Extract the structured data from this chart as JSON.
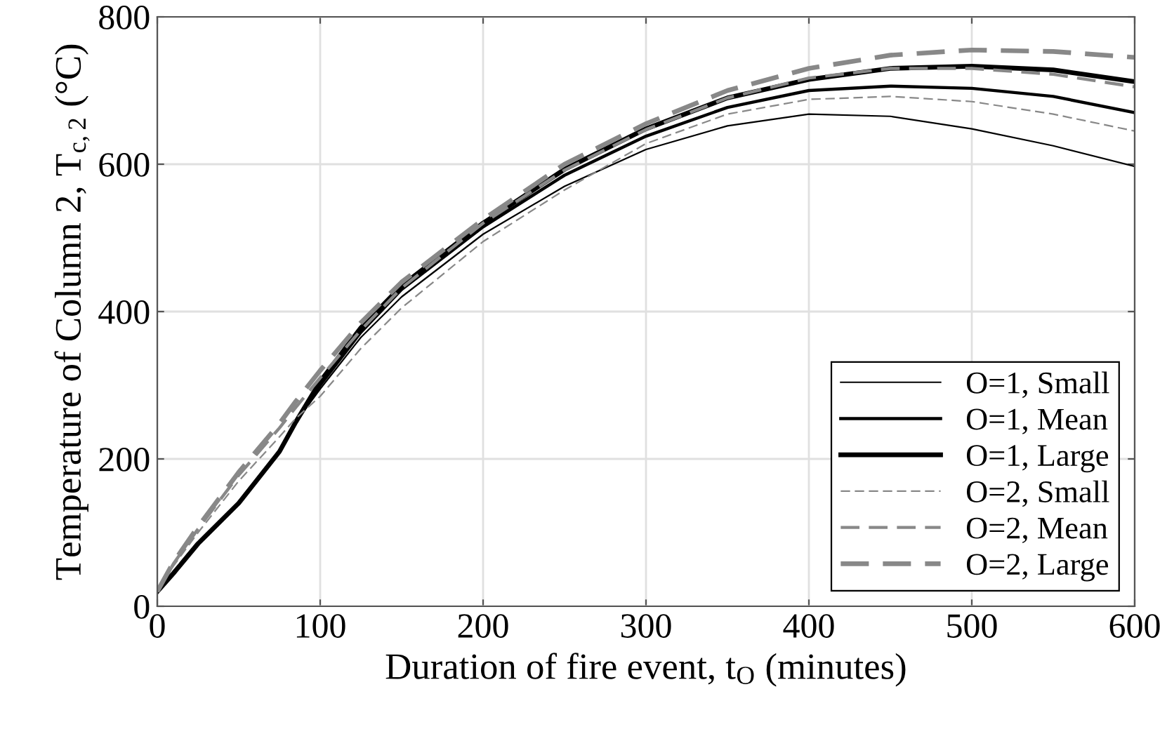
{
  "chart_data": {
    "type": "line",
    "xlabel": "Duration of fire event, t$_{O}$ (minutes)",
    "ylabel": "Temperature of Column 2, T$_{c,2}$ (°C)",
    "x": [
      0,
      10,
      25,
      50,
      75,
      85,
      100,
      125,
      150,
      200,
      250,
      300,
      350,
      400,
      450,
      500,
      550,
      600
    ],
    "xlim": [
      0,
      600
    ],
    "ylim": [
      0,
      800
    ],
    "xticks": [
      0,
      100,
      200,
      300,
      400,
      500,
      600
    ],
    "yticks": [
      0,
      200,
      400,
      600,
      800
    ],
    "grid": true,
    "legend": "bottom right",
    "series": [
      {
        "name": "O=1, Small",
        "color": "#000000",
        "line_style": "solid",
        "values": [
          20,
          45,
          85,
          140,
          210,
          250,
          295,
          365,
          420,
          505,
          570,
          620,
          652,
          668,
          665,
          648,
          625,
          597
        ]
      },
      {
        "name": "O=1, Mean",
        "color": "#000000",
        "line_style": "solid",
        "values": [
          20,
          45,
          85,
          140,
          210,
          250,
          300,
          372,
          430,
          515,
          585,
          638,
          677,
          700,
          706,
          703,
          692,
          670
        ]
      },
      {
        "name": "O=1, Large",
        "color": "#000000",
        "line_style": "solid",
        "values": [
          20,
          45,
          85,
          140,
          210,
          250,
          305,
          378,
          435,
          520,
          593,
          648,
          690,
          715,
          730,
          733,
          728,
          712
        ]
      },
      {
        "name": "O=2, Small",
        "color": "#888888",
        "line_style": "dashed",
        "values": [
          20,
          55,
          100,
          170,
          230,
          255,
          285,
          350,
          405,
          495,
          565,
          628,
          668,
          688,
          692,
          685,
          668,
          645
        ]
      },
      {
        "name": "O=2, Mean",
        "color": "#888888",
        "line_style": "dashed",
        "values": [
          20,
          58,
          105,
          178,
          242,
          270,
          310,
          375,
          432,
          520,
          592,
          647,
          690,
          717,
          730,
          730,
          722,
          705
        ]
      },
      {
        "name": "O=2, Large",
        "color": "#888888",
        "line_style": "dashed",
        "values": [
          20,
          60,
          108,
          182,
          248,
          278,
          320,
          385,
          440,
          525,
          600,
          655,
          700,
          730,
          748,
          755,
          753,
          745
        ]
      }
    ]
  }
}
